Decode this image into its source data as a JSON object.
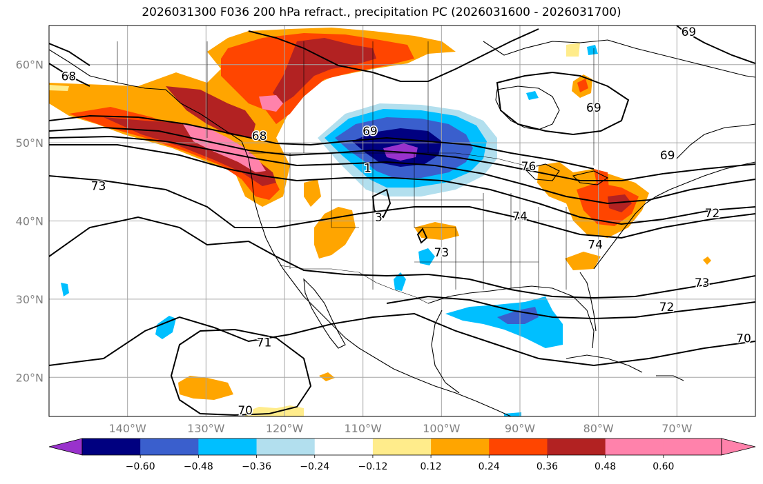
{
  "title": "2026031300 F036 200 hPa refract., precipitation PC (2026031600 - 2026031700)",
  "axes": {
    "lat_ticks": [
      "60°N",
      "50°N",
      "40°N",
      "30°N",
      "20°N"
    ],
    "lon_ticks": [
      "140°W",
      "130°W",
      "120°W",
      "110°W",
      "100°W",
      "90°W",
      "80°W",
      "70°W"
    ],
    "lat_values": [
      60,
      50,
      40,
      30,
      20
    ],
    "lon_values": [
      -140,
      -130,
      -120,
      -110,
      -100,
      -90,
      -80,
      -70
    ],
    "lat_range": [
      15,
      65
    ],
    "lon_range": [
      -150,
      -60
    ]
  },
  "colorbar": {
    "tick_labels": [
      "−0.60",
      "−0.48",
      "−0.36",
      "−0.24",
      "−0.12",
      "0.12",
      "0.24",
      "0.36",
      "0.48",
      "0.60"
    ],
    "colors": [
      "#9932CC",
      "#000080",
      "#3A5FCD",
      "#00BFFF",
      "#B2DFEE",
      "#FFFFFF",
      "#FFEC8B",
      "#FFA500",
      "#FF4500",
      "#B22222",
      "#FF82AB",
      "#FF82AB"
    ]
  },
  "contour_labels": [
    {
      "text": "68",
      "lon": -147.5,
      "lat": 58.5
    },
    {
      "text": "68",
      "lon": -123.2,
      "lat": 50.9
    },
    {
      "text": "69",
      "lon": -109.1,
      "lat": 51.5
    },
    {
      "text": "1",
      "lon": -109.4,
      "lat": 46.8
    },
    {
      "text": "3",
      "lon": -108.0,
      "lat": 40.5
    },
    {
      "text": "73",
      "lon": -143.7,
      "lat": 44.5
    },
    {
      "text": "73",
      "lon": -100.0,
      "lat": 36.0
    },
    {
      "text": "74",
      "lon": -90.0,
      "lat": 40.6
    },
    {
      "text": "74",
      "lon": -80.4,
      "lat": 37.0
    },
    {
      "text": "76",
      "lon": -88.9,
      "lat": 47.0
    },
    {
      "text": "69",
      "lon": -80.6,
      "lat": 54.5
    },
    {
      "text": "69",
      "lon": -71.2,
      "lat": 48.4
    },
    {
      "text": "69",
      "lon": -68.5,
      "lat": 64.2
    },
    {
      "text": "72",
      "lon": -65.5,
      "lat": 41.0
    },
    {
      "text": "72",
      "lon": -71.3,
      "lat": 29.0
    },
    {
      "text": "73",
      "lon": -66.8,
      "lat": 32.1
    },
    {
      "text": "71",
      "lon": -122.6,
      "lat": 24.5
    },
    {
      "text": "70",
      "lon": -61.5,
      "lat": 25.0
    },
    {
      "text": "70",
      "lon": -125.0,
      "lat": 15.8
    }
  ],
  "colors": {
    "land_line": "#000000",
    "grid": "#a6a6a6",
    "tick_label": "#808080"
  }
}
